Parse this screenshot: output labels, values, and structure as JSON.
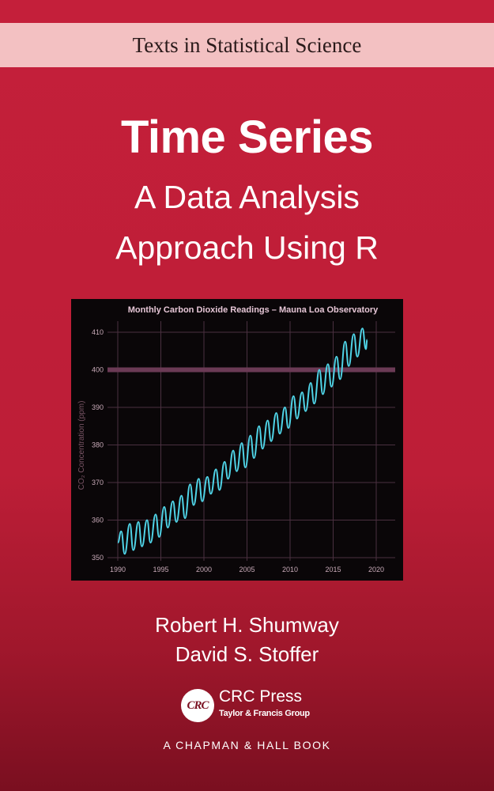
{
  "series_name": "Texts in Statistical Science",
  "title": "Time Series",
  "subtitle_line1": "A Data Analysis",
  "subtitle_line2": "Approach Using R",
  "authors": [
    "Robert H. Shumway",
    "David S. Stoffer"
  ],
  "publisher": {
    "logo_text": "CRC",
    "name": "CRC Press",
    "group": "Taylor & Francis Group",
    "imprint": "A CHAPMAN & HALL BOOK"
  },
  "colors": {
    "background": "#c41f3a",
    "band": "#f3c1c2",
    "line": "#4fd3e6",
    "chart_bg": "#0a0608",
    "reference_band": "#6b3a55"
  },
  "chart_data": {
    "type": "line",
    "title": "Monthly Carbon Dioxide Readings – Mauna Loa Observatory",
    "xlabel": "",
    "ylabel": "CO₂ Concentration (ppm)",
    "xlim": [
      1990,
      2020
    ],
    "ylim": [
      350,
      410
    ],
    "xticks": [
      1990,
      1995,
      2000,
      2005,
      2010,
      2015,
      2020
    ],
    "yticks": [
      350,
      360,
      370,
      380,
      390,
      400,
      410
    ],
    "grid": true,
    "reference_line": 400,
    "x": [
      1990.0,
      1990.4,
      1990.8,
      1991.4,
      1991.8,
      1992.4,
      1992.8,
      1993.4,
      1993.8,
      1994.4,
      1994.8,
      1995.4,
      1995.8,
      1996.4,
      1996.8,
      1997.4,
      1997.8,
      1998.4,
      1998.8,
      1999.4,
      1999.8,
      2000.4,
      2000.8,
      2001.4,
      2001.8,
      2002.4,
      2002.8,
      2003.4,
      2003.8,
      2004.4,
      2004.8,
      2005.4,
      2005.8,
      2006.4,
      2006.8,
      2007.4,
      2007.8,
      2008.4,
      2008.8,
      2009.4,
      2009.8,
      2010.4,
      2010.8,
      2011.4,
      2011.8,
      2012.4,
      2012.8,
      2013.4,
      2013.8,
      2014.4,
      2014.8,
      2015.4,
      2015.8,
      2016.4,
      2016.8,
      2017.4,
      2017.8,
      2018.4,
      2018.8,
      2018.95
    ],
    "y": [
      354,
      357,
      351,
      359,
      352,
      359.5,
      353,
      360,
      354,
      361.5,
      355.5,
      363.5,
      358,
      365,
      359.5,
      366.5,
      360.5,
      369.5,
      364,
      371,
      365,
      371.5,
      367,
      373.5,
      368,
      375.5,
      371,
      378.5,
      373,
      380.5,
      374,
      382.5,
      376.5,
      385,
      379,
      386.5,
      381,
      388.5,
      383,
      390,
      384.5,
      393,
      387,
      394,
      389,
      396.5,
      391,
      400,
      393.5,
      401.5,
      395.5,
      403.5,
      397.5,
      407.5,
      401,
      409.5,
      403.5,
      411,
      405.5,
      408
    ]
  }
}
